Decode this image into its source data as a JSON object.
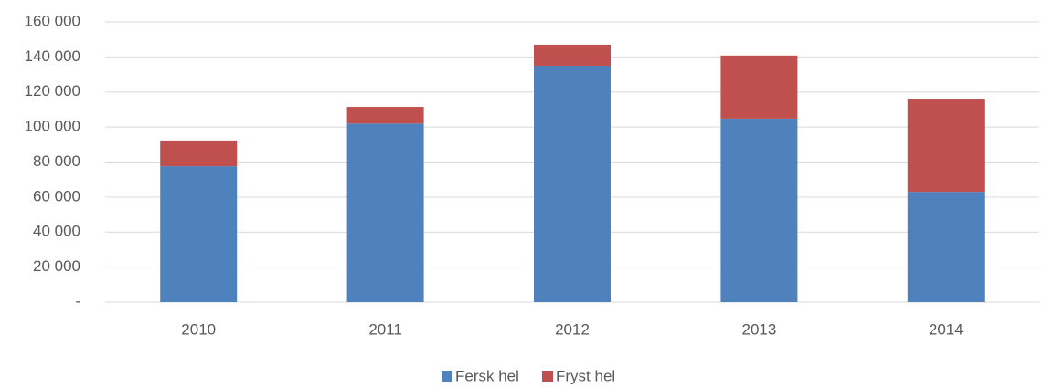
{
  "chart_data": {
    "type": "stacked_bar",
    "categories": [
      "2010",
      "2011",
      "2012",
      "2013",
      "2014"
    ],
    "series": [
      {
        "name": "Fersk hel",
        "color": "#4f81bd",
        "values": [
          77600,
          102000,
          135000,
          104800,
          63000
        ]
      },
      {
        "name": "Fryst hel",
        "color": "#c0504d",
        "values": [
          14700,
          9500,
          12000,
          36000,
          53200
        ]
      }
    ],
    "ylim": [
      0,
      160000
    ],
    "yticks": [
      {
        "value": 0,
        "label": "-"
      },
      {
        "value": 20000,
        "label": "20 000"
      },
      {
        "value": 40000,
        "label": "40 000"
      },
      {
        "value": 60000,
        "label": "60 000"
      },
      {
        "value": 80000,
        "label": "80 000"
      },
      {
        "value": 100000,
        "label": "100 000"
      },
      {
        "value": 120000,
        "label": "120 000"
      },
      {
        "value": 140000,
        "label": "140 000"
      },
      {
        "value": 160000,
        "label": "160 000"
      }
    ],
    "grid": true,
    "legend": "bottom"
  }
}
